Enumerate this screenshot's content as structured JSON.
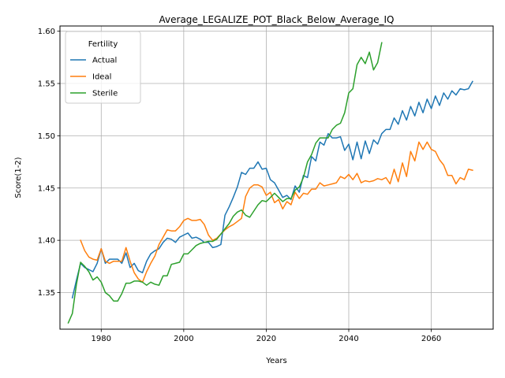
{
  "chart_data": {
    "type": "line",
    "title": "Average_LEGALIZE_POT_Black_Below_Average_IQ",
    "xlabel": "Years",
    "ylabel": "Score(1-2)",
    "xlim": [
      1970,
      2075
    ],
    "ylim": [
      1.315,
      1.605
    ],
    "xticks": [
      1980,
      2000,
      2020,
      2040,
      2060
    ],
    "yticks": [
      1.35,
      1.4,
      1.45,
      1.5,
      1.55,
      1.6
    ],
    "xtick_labels": [
      "1980",
      "2000",
      "2020",
      "2040",
      "2060"
    ],
    "ytick_labels": [
      "1.35",
      "1.40",
      "1.45",
      "1.50",
      "1.55",
      "1.60"
    ],
    "grid": true,
    "legend": {
      "title": "Fertility",
      "placement": "top-left"
    },
    "series": [
      {
        "name": "Actual",
        "color": "#1f77b4",
        "x": [
          1973,
          1974,
          1975,
          1976,
          1977,
          1978,
          1979,
          1980,
          1981,
          1982,
          1983,
          1984,
          1985,
          1986,
          1987,
          1988,
          1989,
          1990,
          1991,
          1992,
          1993,
          1994,
          1995,
          1996,
          1997,
          1998,
          1999,
          2000,
          2001,
          2002,
          2003,
          2004,
          2005,
          2006,
          2007,
          2008,
          2009,
          2010,
          2011,
          2012,
          2013,
          2014,
          2015,
          2016,
          2017,
          2018,
          2019,
          2020,
          2021,
          2022,
          2023,
          2024,
          2025,
          2026,
          2027,
          2028,
          2029,
          2030,
          2031,
          2032,
          2033,
          2034,
          2035,
          2036,
          2037,
          2038,
          2039,
          2040,
          2041,
          2042,
          2043,
          2044,
          2045,
          2046,
          2047,
          2048,
          2049,
          2050,
          2051,
          2052,
          2053,
          2054,
          2055,
          2056,
          2057,
          2058,
          2059,
          2060,
          2061,
          2062,
          2063,
          2064,
          2065,
          2066,
          2067,
          2068,
          2069,
          2070
        ],
        "y": [
          1.345,
          1.362,
          1.378,
          1.374,
          1.372,
          1.37,
          1.378,
          1.392,
          1.378,
          1.382,
          1.382,
          1.382,
          1.378,
          1.388,
          1.374,
          1.378,
          1.371,
          1.369,
          1.38,
          1.387,
          1.39,
          1.392,
          1.398,
          1.402,
          1.401,
          1.398,
          1.403,
          1.405,
          1.407,
          1.402,
          1.403,
          1.401,
          1.398,
          1.398,
          1.393,
          1.394,
          1.396,
          1.424,
          1.432,
          1.441,
          1.451,
          1.465,
          1.463,
          1.469,
          1.469,
          1.475,
          1.468,
          1.469,
          1.458,
          1.455,
          1.448,
          1.441,
          1.443,
          1.439,
          1.452,
          1.446,
          1.462,
          1.46,
          1.48,
          1.476,
          1.494,
          1.491,
          1.502,
          1.498,
          1.498,
          1.499,
          1.486,
          1.492,
          1.477,
          1.494,
          1.478,
          1.495,
          1.483,
          1.496,
          1.492,
          1.502,
          1.506,
          1.506,
          1.517,
          1.511,
          1.524,
          1.515,
          1.528,
          1.519,
          1.532,
          1.522,
          1.535,
          1.526,
          1.538,
          1.529,
          1.541,
          1.535,
          1.543,
          1.539,
          1.545,
          1.544,
          1.545,
          1.552
        ]
      },
      {
        "name": "Ideal",
        "color": "#ff7f0e",
        "x": [
          1975,
          1976,
          1977,
          1978,
          1979,
          1980,
          1981,
          1982,
          1983,
          1984,
          1985,
          1986,
          1987,
          1988,
          1989,
          1990,
          1991,
          1992,
          1993,
          1994,
          1995,
          1996,
          1997,
          1998,
          1999,
          2000,
          2001,
          2002,
          2003,
          2004,
          2005,
          2006,
          2007,
          2008,
          2009,
          2010,
          2011,
          2012,
          2013,
          2014,
          2015,
          2016,
          2017,
          2018,
          2019,
          2020,
          2021,
          2022,
          2023,
          2024,
          2025,
          2026,
          2027,
          2028,
          2029,
          2030,
          2031,
          2032,
          2033,
          2034,
          2035,
          2036,
          2037,
          2038,
          2039,
          2040,
          2041,
          2042,
          2043,
          2044,
          2045,
          2046,
          2047,
          2048,
          2049,
          2050,
          2051,
          2052,
          2053,
          2054,
          2055,
          2056,
          2057,
          2058,
          2059,
          2060,
          2061,
          2062,
          2063,
          2064,
          2065,
          2066,
          2067,
          2068,
          2069,
          2070
        ],
        "y": [
          1.4,
          1.39,
          1.384,
          1.382,
          1.381,
          1.392,
          1.38,
          1.378,
          1.38,
          1.38,
          1.38,
          1.393,
          1.38,
          1.369,
          1.363,
          1.36,
          1.37,
          1.378,
          1.385,
          1.396,
          1.403,
          1.41,
          1.409,
          1.409,
          1.413,
          1.419,
          1.421,
          1.419,
          1.419,
          1.42,
          1.415,
          1.405,
          1.4,
          1.402,
          1.406,
          1.41,
          1.413,
          1.415,
          1.418,
          1.421,
          1.442,
          1.45,
          1.453,
          1.453,
          1.451,
          1.443,
          1.446,
          1.436,
          1.439,
          1.43,
          1.437,
          1.434,
          1.446,
          1.44,
          1.445,
          1.444,
          1.449,
          1.449,
          1.455,
          1.452,
          1.453,
          1.454,
          1.455,
          1.461,
          1.459,
          1.463,
          1.458,
          1.464,
          1.455,
          1.457,
          1.456,
          1.457,
          1.459,
          1.458,
          1.46,
          1.454,
          1.468,
          1.456,
          1.474,
          1.461,
          1.485,
          1.476,
          1.494,
          1.487,
          1.494,
          1.487,
          1.485,
          1.477,
          1.472,
          1.462,
          1.462,
          1.454,
          1.46,
          1.458,
          1.468,
          1.467
        ]
      },
      {
        "name": "Sterile",
        "color": "#2ca02c",
        "x": [
          1972,
          1973,
          1974,
          1975,
          1976,
          1977,
          1978,
          1979,
          1980,
          1981,
          1982,
          1983,
          1984,
          1985,
          1986,
          1987,
          1988,
          1989,
          1990,
          1991,
          1992,
          1993,
          1994,
          1995,
          1996,
          1997,
          1998,
          1999,
          2000,
          2001,
          2002,
          2003,
          2004,
          2005,
          2006,
          2007,
          2008,
          2009,
          2010,
          2011,
          2012,
          2013,
          2014,
          2015,
          2016,
          2017,
          2018,
          2019,
          2020,
          2021,
          2022,
          2023,
          2024,
          2025,
          2026,
          2027,
          2028,
          2029,
          2030,
          2031,
          2032,
          2033,
          2034,
          2035,
          2036,
          2037,
          2038,
          2039,
          2040,
          2041,
          2042,
          2043,
          2044,
          2045,
          2046,
          2047,
          2048
        ],
        "y": [
          1.321,
          1.33,
          1.358,
          1.379,
          1.375,
          1.37,
          1.362,
          1.365,
          1.36,
          1.35,
          1.347,
          1.342,
          1.342,
          1.349,
          1.359,
          1.359,
          1.361,
          1.361,
          1.36,
          1.357,
          1.36,
          1.358,
          1.357,
          1.366,
          1.366,
          1.377,
          1.378,
          1.379,
          1.387,
          1.387,
          1.391,
          1.395,
          1.397,
          1.398,
          1.399,
          1.399,
          1.401,
          1.406,
          1.411,
          1.416,
          1.423,
          1.427,
          1.429,
          1.424,
          1.422,
          1.428,
          1.434,
          1.438,
          1.437,
          1.441,
          1.445,
          1.441,
          1.437,
          1.44,
          1.44,
          1.448,
          1.451,
          1.46,
          1.475,
          1.482,
          1.493,
          1.498,
          1.498,
          1.498,
          1.506,
          1.51,
          1.512,
          1.522,
          1.541,
          1.545,
          1.568,
          1.575,
          1.569,
          1.58,
          1.563,
          1.57,
          1.589
        ]
      }
    ]
  }
}
